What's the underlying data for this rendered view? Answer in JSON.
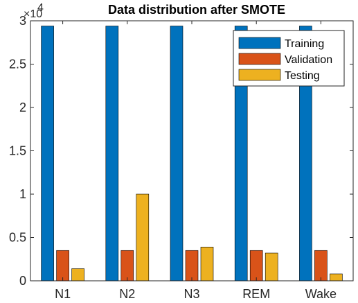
{
  "chart_data": {
    "type": "bar",
    "title": "Data distribution after SMOTE",
    "categories": [
      "N1",
      "N2",
      "N3",
      "REM",
      "Wake"
    ],
    "series": [
      {
        "name": "Training",
        "color": "#0072BD",
        "values": [
          29400,
          29400,
          29400,
          29400,
          29400
        ]
      },
      {
        "name": "Validation",
        "color": "#D95319",
        "values": [
          3500,
          3500,
          3500,
          3500,
          3500
        ]
      },
      {
        "name": "Testing",
        "color": "#EDB120",
        "values": [
          1400,
          10000,
          3900,
          3200,
          800
        ]
      }
    ],
    "ylim": [
      0,
      30000
    ],
    "yticks": [
      0,
      5000,
      10000,
      15000,
      20000,
      25000,
      30000
    ],
    "ytick_labels": [
      "0",
      "0.5",
      "1",
      "1.5",
      "2",
      "2.5",
      "3"
    ],
    "y_exponent_base": "×10",
    "y_exponent_power": "4",
    "xlabel": "",
    "ylabel": "",
    "legend_position": "top-right",
    "grid": false
  }
}
